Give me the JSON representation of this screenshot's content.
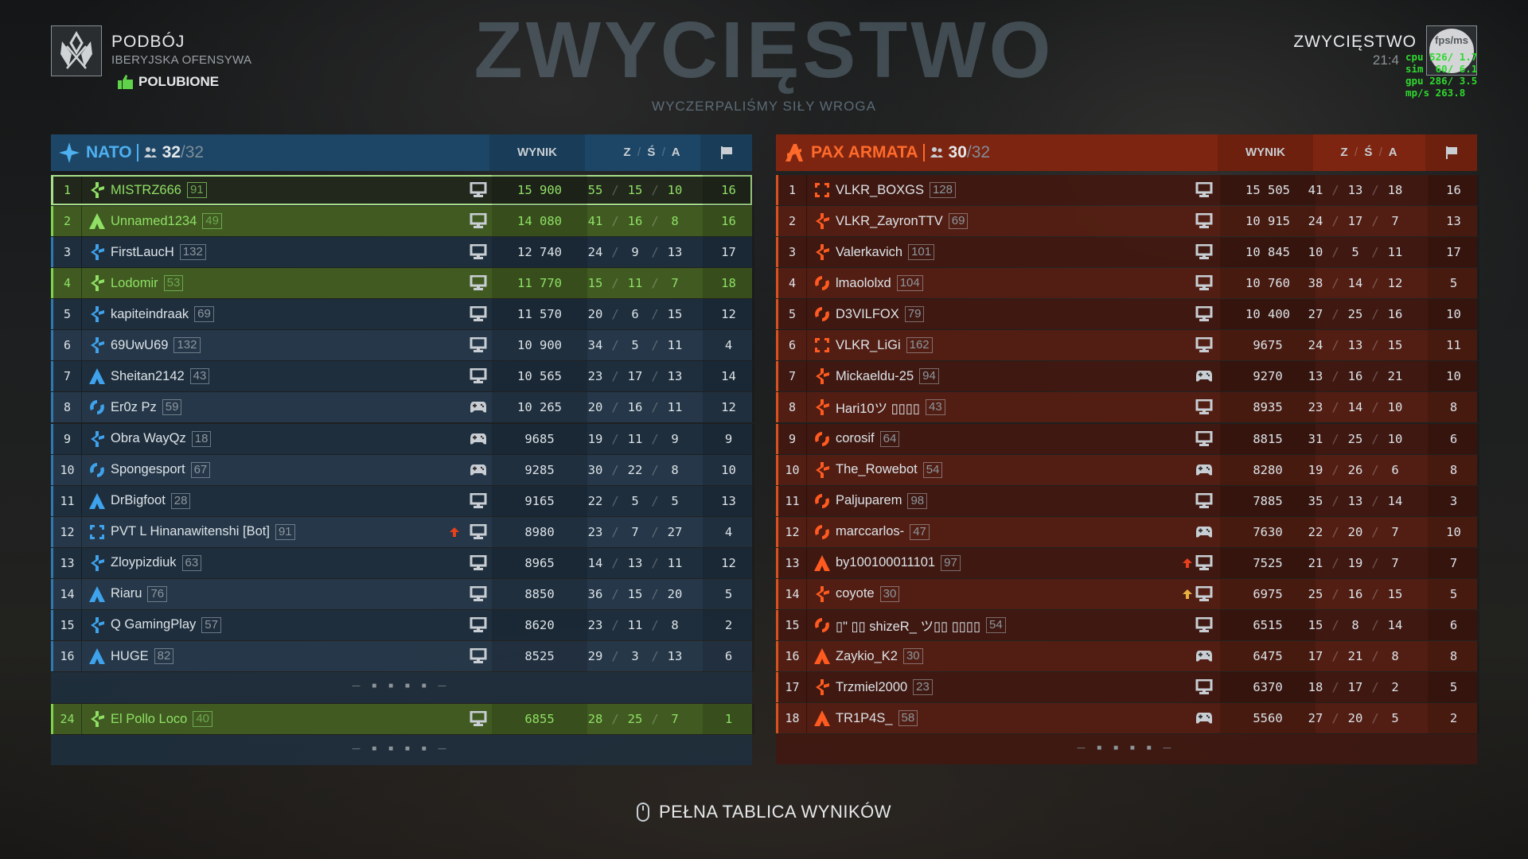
{
  "header": {
    "mode": "PODBÓJ",
    "map": "IBERYJSKA OFENSYWA",
    "liked_label": "POLUBIONE",
    "result": "ZWYCIĘSTWO",
    "time": "21:4",
    "avatar_text": "fps/ms"
  },
  "perf_overlay": [
    "cpu 526/ 1.7",
    "sim  60/ 6.1",
    "gpu 286/ 3.5",
    "mp/s 263.8"
  ],
  "columns": {
    "score": "WYNIK",
    "kills": "Z",
    "deaths": "Ś",
    "assists": "A",
    "objective_icon": "flag-icon"
  },
  "colors": {
    "nato": "#4eb0f0",
    "pax": "#ff6a2a",
    "highlight": "#8fe065",
    "perf": "#2fd82f"
  },
  "watermark": {
    "title": "ZWYCIĘSTWO",
    "subtitle": "WYCZERPALIŚMY SIŁY WROGA"
  },
  "pagination": "— ■ ■ ■ ■ —",
  "footer": {
    "label": "PEŁNA TABLICA WYNIKÓW",
    "icon": "mouse-icon"
  },
  "teams": [
    {
      "name": "NATO",
      "players_count": "32",
      "players_max": "/32",
      "players": [
        {
          "rank": "1",
          "icon": "cross",
          "name": "MISTRZ666",
          "level": "91",
          "device": "pc",
          "score": "15 900",
          "z": "55",
          "s": "15",
          "a": "10",
          "flag": "16",
          "state": "me"
        },
        {
          "rank": "2",
          "icon": "triangle",
          "name": "Unnamed1234",
          "level": "49",
          "device": "pc",
          "score": "14 080",
          "z": "41",
          "s": "16",
          "a": "8",
          "flag": "16",
          "state": "squad"
        },
        {
          "rank": "3",
          "icon": "cross",
          "name": "FirstLaucH",
          "level": "132",
          "device": "pc",
          "score": "12 740",
          "z": "24",
          "s": "9",
          "a": "13",
          "flag": "17"
        },
        {
          "rank": "4",
          "icon": "cross",
          "name": "Lodomir",
          "level": "53",
          "device": "pc",
          "score": "11 770",
          "z": "15",
          "s": "11",
          "a": "7",
          "flag": "18",
          "state": "squad"
        },
        {
          "rank": "5",
          "icon": "cross",
          "name": "kapiteindraak",
          "level": "69",
          "device": "pc",
          "score": "11 570",
          "z": "20",
          "s": "6",
          "a": "15",
          "flag": "12"
        },
        {
          "rank": "6",
          "icon": "cross",
          "name": "69UwU69",
          "level": "132",
          "device": "pc",
          "score": "10 900",
          "z": "34",
          "s": "5",
          "a": "11",
          "flag": "4"
        },
        {
          "rank": "7",
          "icon": "triangle",
          "name": "Sheitan2142",
          "level": "43",
          "device": "pc",
          "score": "10 565",
          "z": "23",
          "s": "17",
          "a": "13",
          "flag": "14"
        },
        {
          "rank": "8",
          "icon": "ring",
          "name": "Er0z Pz",
          "level": "59",
          "device": "gamepad",
          "score": "10 265",
          "z": "20",
          "s": "16",
          "a": "11",
          "flag": "12"
        },
        {
          "rank": "9",
          "icon": "cross",
          "name": "Obra WayQz",
          "level": "18",
          "device": "gamepad",
          "score": "9685",
          "z": "19",
          "s": "11",
          "a": "9",
          "flag": "9"
        },
        {
          "rank": "10",
          "icon": "ring",
          "name": "Spongesport",
          "level": "67",
          "device": "gamepad",
          "score": "9285",
          "z": "30",
          "s": "22",
          "a": "8",
          "flag": "10"
        },
        {
          "rank": "11",
          "icon": "triangle",
          "name": "DrBigfoot",
          "level": "28",
          "device": "pc",
          "score": "9165",
          "z": "22",
          "s": "5",
          "a": "5",
          "flag": "13"
        },
        {
          "rank": "12",
          "icon": "brackets",
          "name": "PVT L Hinanawitenshi [Bot]",
          "level": "91",
          "device": "pc",
          "score": "8980",
          "z": "23",
          "s": "7",
          "a": "27",
          "flag": "4",
          "badge": "red"
        },
        {
          "rank": "13",
          "icon": "cross",
          "name": "Zloypizdiuk",
          "level": "63",
          "device": "pc",
          "score": "8965",
          "z": "14",
          "s": "13",
          "a": "11",
          "flag": "12"
        },
        {
          "rank": "14",
          "icon": "triangle",
          "name": "Riaru",
          "level": "76",
          "device": "pc",
          "score": "8850",
          "z": "36",
          "s": "15",
          "a": "20",
          "flag": "5"
        },
        {
          "rank": "15",
          "icon": "cross",
          "name": "Q GamingPlay",
          "level": "57",
          "device": "pc",
          "score": "8620",
          "z": "23",
          "s": "11",
          "a": "8",
          "flag": "2"
        },
        {
          "rank": "16",
          "icon": "triangle",
          "name": "HUGE",
          "level": "82",
          "device": "pc",
          "score": "8525",
          "z": "29",
          "s": "3",
          "a": "13",
          "flag": "6"
        }
      ],
      "pinned": {
        "rank": "24",
        "icon": "cross",
        "name": "El Pollo Loco",
        "level": "40",
        "device": "pc",
        "score": "6855",
        "z": "28",
        "s": "25",
        "a": "7",
        "flag": "1",
        "state": "squad"
      }
    },
    {
      "name": "PAX ARMATA",
      "players_count": "30",
      "players_max": "/32",
      "players": [
        {
          "rank": "1",
          "icon": "brackets",
          "name": "VLKR_BOXGS",
          "level": "128",
          "device": "pc",
          "score": "15 505",
          "z": "41",
          "s": "13",
          "a": "18",
          "flag": "16"
        },
        {
          "rank": "2",
          "icon": "cross",
          "name": "VLKR_ZayronTTV",
          "level": "69",
          "device": "pc",
          "score": "10 915",
          "z": "24",
          "s": "17",
          "a": "7",
          "flag": "13"
        },
        {
          "rank": "3",
          "icon": "cross",
          "name": "Valerkavich",
          "level": "101",
          "device": "pc",
          "score": "10 845",
          "z": "10",
          "s": "5",
          "a": "11",
          "flag": "17"
        },
        {
          "rank": "4",
          "icon": "ring",
          "name": "lmaololxd",
          "level": "104",
          "device": "pc",
          "score": "10 760",
          "z": "38",
          "s": "14",
          "a": "12",
          "flag": "5"
        },
        {
          "rank": "5",
          "icon": "ring",
          "name": "D3VILFOX",
          "level": "79",
          "device": "pc",
          "score": "10 400",
          "z": "27",
          "s": "25",
          "a": "16",
          "flag": "10"
        },
        {
          "rank": "6",
          "icon": "brackets",
          "name": "VLKR_LiGi",
          "level": "162",
          "device": "pc",
          "score": "9675",
          "z": "24",
          "s": "13",
          "a": "15",
          "flag": "11"
        },
        {
          "rank": "7",
          "icon": "cross",
          "name": "Mickaeldu-25",
          "level": "94",
          "device": "gamepad",
          "score": "9270",
          "z": "13",
          "s": "16",
          "a": "21",
          "flag": "10"
        },
        {
          "rank": "8",
          "icon": "cross",
          "name": "Hari10ツ ▯▯▯▯",
          "level": "43",
          "device": "pc",
          "score": "8935",
          "z": "23",
          "s": "14",
          "a": "10",
          "flag": "8"
        },
        {
          "rank": "9",
          "icon": "ring",
          "name": "corosif",
          "level": "64",
          "device": "pc",
          "score": "8815",
          "z": "31",
          "s": "25",
          "a": "10",
          "flag": "6"
        },
        {
          "rank": "10",
          "icon": "cross",
          "name": "The_Rowebot",
          "level": "54",
          "device": "gamepad",
          "score": "8280",
          "z": "19",
          "s": "26",
          "a": "6",
          "flag": "8"
        },
        {
          "rank": "11",
          "icon": "ring",
          "name": "Paljuparem",
          "level": "98",
          "device": "pc",
          "score": "7885",
          "z": "35",
          "s": "13",
          "a": "14",
          "flag": "3"
        },
        {
          "rank": "12",
          "icon": "ring",
          "name": "marccarlos-",
          "level": "47",
          "device": "gamepad",
          "score": "7630",
          "z": "22",
          "s": "20",
          "a": "7",
          "flag": "10"
        },
        {
          "rank": "13",
          "icon": "triangle",
          "name": "by100100011101",
          "level": "97",
          "device": "pc",
          "score": "7525",
          "z": "21",
          "s": "19",
          "a": "7",
          "flag": "7",
          "badge": "red"
        },
        {
          "rank": "14",
          "icon": "cross",
          "name": "coyote",
          "level": "30",
          "device": "pc",
          "score": "6975",
          "z": "25",
          "s": "16",
          "a": "15",
          "flag": "5",
          "badge": "yellow"
        },
        {
          "rank": "15",
          "icon": "ring",
          "name": "▯\" ▯▯ shizeR_ ツ▯▯ ▯▯▯▯",
          "level": "54",
          "device": "pc",
          "score": "6515",
          "z": "15",
          "s": "8",
          "a": "14",
          "flag": "6"
        },
        {
          "rank": "16",
          "icon": "triangle",
          "name": "Zaykio_K2",
          "level": "30",
          "device": "gamepad",
          "score": "6475",
          "z": "17",
          "s": "21",
          "a": "8",
          "flag": "8"
        },
        {
          "rank": "17",
          "icon": "cross",
          "name": "Trzmiel2000",
          "level": "23",
          "device": "pc",
          "score": "6370",
          "z": "18",
          "s": "17",
          "a": "2",
          "flag": "5"
        },
        {
          "rank": "18",
          "icon": "triangle",
          "name": "TR1P4S_",
          "level": "58",
          "device": "gamepad",
          "score": "5560",
          "z": "27",
          "s": "20",
          "a": "5",
          "flag": "2"
        }
      ]
    }
  ]
}
